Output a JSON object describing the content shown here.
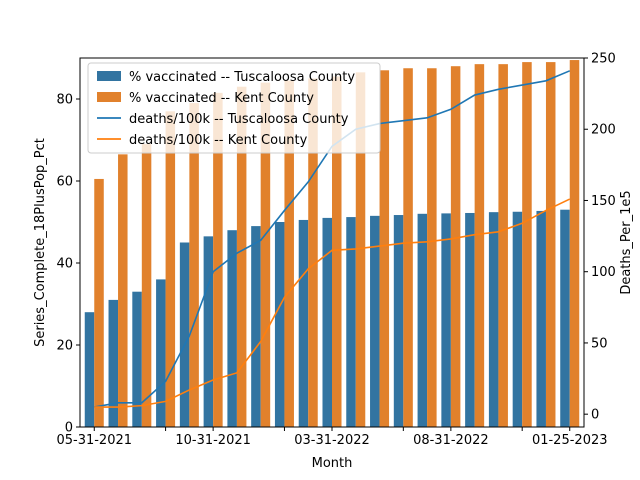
{
  "chart_data": {
    "type": "bar+line",
    "xlabel": "Month",
    "ylabel_left": "Series_Complete_18PlusPop_Pct",
    "ylabel_right": "Deaths_Per_1e5",
    "ylim_left": [
      0,
      90
    ],
    "ylim_right": [
      -9,
      250
    ],
    "yticks_left": [
      0,
      20,
      40,
      60,
      80
    ],
    "yticks_right": [
      0,
      50,
      100,
      150,
      200,
      250
    ],
    "x_tick_labels": [
      {
        "index": 0,
        "label": "05-31-2021"
      },
      {
        "index": 5,
        "label": "10-31-2021"
      },
      {
        "index": 10,
        "label": "03-31-2022"
      },
      {
        "index": 15,
        "label": "08-31-2022"
      },
      {
        "index": 20,
        "label": "01-25-2023"
      }
    ],
    "x_tick_indices_unlabeled": [
      3,
      8,
      13,
      18
    ],
    "category_count": 21,
    "colors": {
      "blue": "#3274a1",
      "orange": "#e1812c",
      "line_blue": "#1f77b4",
      "line_orange": "#ff7f0e"
    },
    "bar_series": [
      {
        "name": "% vaccinated -- Tuscaloosa County",
        "color": "#3274a1",
        "values": [
          28,
          31,
          33,
          36,
          45,
          46.5,
          48,
          49,
          50,
          50.5,
          51,
          51.2,
          51.5,
          51.7,
          52,
          52.1,
          52.2,
          52.4,
          52.5,
          52.7,
          53
        ]
      },
      {
        "name": "% vaccinated -- Kent County",
        "color": "#e1812c",
        "values": [
          60.5,
          66.5,
          69,
          77,
          79,
          81.5,
          83,
          84,
          84.5,
          85,
          85.5,
          86.5,
          87,
          87.5,
          87.5,
          88,
          88.5,
          88.5,
          89,
          89,
          89.5
        ]
      }
    ],
    "line_series": [
      {
        "name": "deaths/100k -- Tuscaloosa County",
        "color": "#1f77b4",
        "values": [
          5,
          8,
          8,
          23,
          55,
          100,
          113,
          122,
          143,
          163,
          188,
          200,
          204,
          206,
          208,
          214,
          224,
          228,
          231,
          234,
          241
        ]
      },
      {
        "name": "deaths/100k -- Kent County",
        "color": "#ff7f0e",
        "values": [
          5,
          5,
          6,
          9,
          17,
          24,
          29,
          51,
          82,
          102,
          115,
          116,
          118,
          120,
          121,
          123,
          126,
          128,
          134,
          143,
          151
        ]
      }
    ],
    "legend_position": "upper-left"
  }
}
